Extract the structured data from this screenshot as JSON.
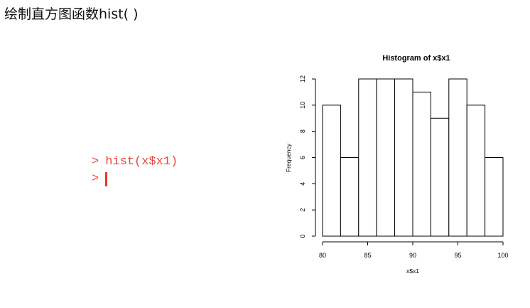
{
  "slide": {
    "title": "绘制直方图函数hist( )"
  },
  "console": {
    "lines": [
      {
        "prompt": ">",
        "command": "hist(x$x1)"
      },
      {
        "prompt": ">",
        "command": ""
      }
    ]
  },
  "colors": {
    "console_text": "#e8483b",
    "cursor": "#e23a2c",
    "bar_fill": "#ffffff",
    "bar_stroke": "#000000"
  },
  "chart_data": {
    "type": "bar",
    "title": "Histogram of x$x1",
    "xlabel": "x$x1",
    "ylabel": "Frequency",
    "bins": [
      [
        80,
        82
      ],
      [
        82,
        84
      ],
      [
        84,
        86
      ],
      [
        86,
        88
      ],
      [
        88,
        90
      ],
      [
        90,
        92
      ],
      [
        92,
        94
      ],
      [
        94,
        96
      ],
      [
        96,
        98
      ],
      [
        98,
        100
      ]
    ],
    "values": [
      10,
      6,
      12,
      12,
      12,
      11,
      9,
      12,
      10,
      6
    ],
    "xlim": [
      80,
      100
    ],
    "ylim": [
      0,
      12
    ],
    "xticks": [
      80,
      85,
      90,
      95,
      100
    ],
    "yticks": [
      0,
      2,
      4,
      6,
      8,
      10,
      12
    ],
    "grid": false
  }
}
